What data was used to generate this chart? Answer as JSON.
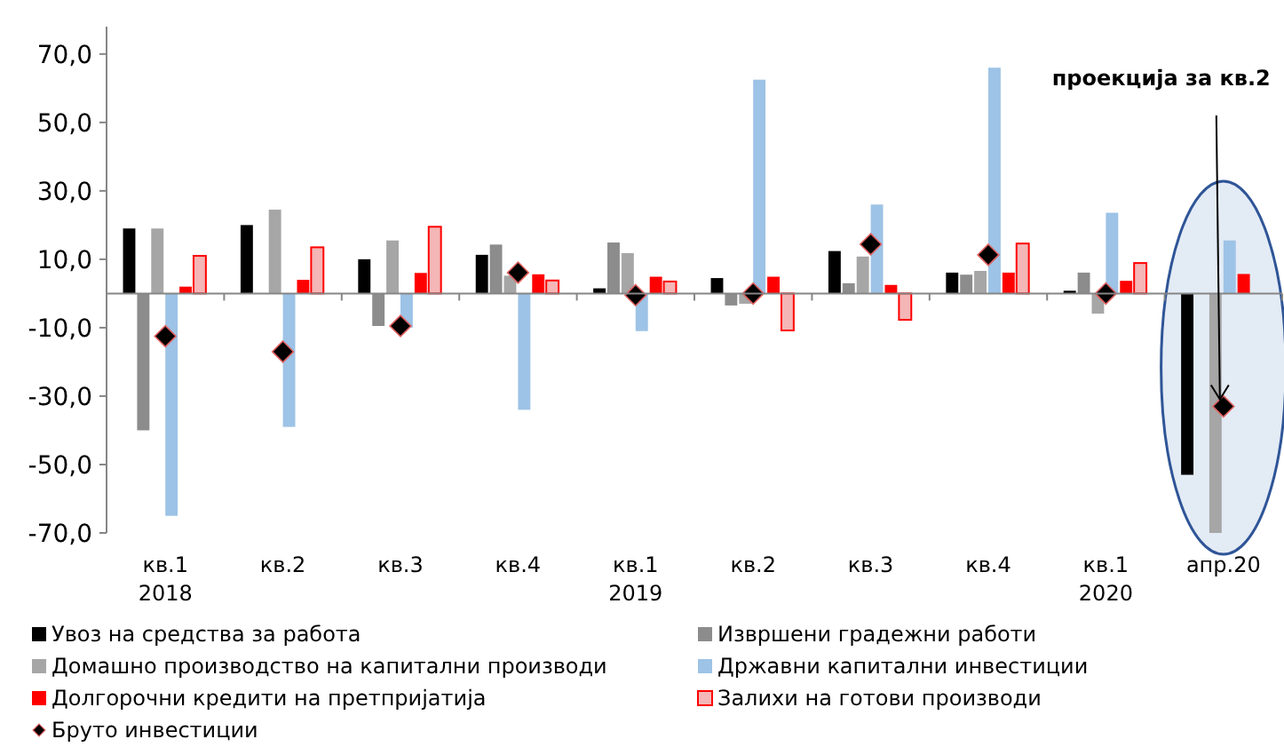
{
  "chart_data": {
    "type": "bar",
    "categories": [
      "кв.1\n2018",
      "кв.2",
      "кв.3",
      "кв.4",
      "кв.1\n2019",
      "кв.2",
      "кв.3",
      "кв.4",
      "кв.1\n2020",
      "апр.20"
    ],
    "series": [
      {
        "name": "Увоз на средства за работа",
        "color": "#000000",
        "values": [
          19,
          20,
          10,
          11.3,
          1.5,
          4.5,
          12.4,
          6.1,
          0.8,
          -53
        ]
      },
      {
        "name": "Извршени градежни работи",
        "color": "#8c8c8c",
        "values": [
          -40,
          0,
          -9.5,
          14.3,
          14.9,
          -3.5,
          3,
          5.5,
          6.1,
          null
        ]
      },
      {
        "name": "Домашно производство на капитални производи",
        "color": "#a6a6a6",
        "values": [
          19,
          24.5,
          15.5,
          5.2,
          11.8,
          -3,
          10.8,
          6.6,
          -5.9,
          -70
        ]
      },
      {
        "name": "Државни капитални инвестиции",
        "color": "#9dc3e6",
        "values": [
          -65,
          -39,
          -10,
          -34,
          -11,
          62.5,
          26,
          66,
          23.6,
          15.5
        ]
      },
      {
        "name": "Долгорочни кредити на претпријатија",
        "color": "#ff0000",
        "values": [
          2,
          4,
          6,
          5.6,
          4.9,
          4.9,
          2.5,
          6.1,
          3.7,
          5.7
        ]
      },
      {
        "name": "Залихи на готови производи",
        "color": "#f4b6b6",
        "values": [
          11,
          13.5,
          19.5,
          3.8,
          3.5,
          -10.8,
          -7.7,
          14.6,
          8.9,
          null
        ]
      },
      {
        "name": "Бруто инвестиции",
        "type": "scatter",
        "color": "#000000",
        "values": [
          -12.5,
          -17,
          -9.5,
          6.1,
          -0.5,
          0,
          14.4,
          11.3,
          0,
          -33
        ]
      }
    ],
    "marker": "diamond",
    "ylim": [
      -70,
      78
    ],
    "yticks": [
      {
        "value": -70,
        "label": "-70,0"
      },
      {
        "value": -50,
        "label": "-50,0"
      },
      {
        "value": -30,
        "label": "-30,0"
      },
      {
        "value": -10,
        "label": "-10,0"
      },
      {
        "value": 10,
        "label": "10,0"
      },
      {
        "value": 30,
        "label": "30,0"
      },
      {
        "value": 50,
        "label": "50,0"
      },
      {
        "value": 70,
        "label": "70,0"
      }
    ],
    "grid": false,
    "legend": "bottom",
    "annotations": [
      {
        "text": "проекција за кв.2",
        "x": "апр.20",
        "y": -33
      }
    ]
  }
}
